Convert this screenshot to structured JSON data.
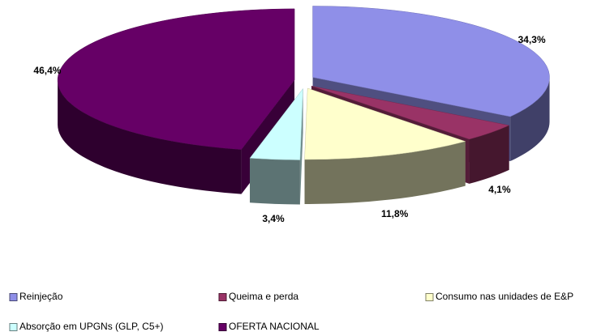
{
  "chart_data": {
    "type": "pie3d",
    "categories": [
      "Reinjeção",
      "Queima e perda",
      "Consumo nas unidades de E&P",
      "Absorção em UPGNs (GLP, C5+)",
      "OFERTA NACIONAL"
    ],
    "values": [
      34.3,
      4.1,
      11.8,
      3.4,
      46.4
    ],
    "value_labels": [
      "34,3%",
      "4,1%",
      "11,8%",
      "3,4%",
      "46,4%"
    ],
    "colors": [
      "#8f8fe8",
      "#993366",
      "#ffffcc",
      "#ccffff",
      "#660066"
    ]
  }
}
